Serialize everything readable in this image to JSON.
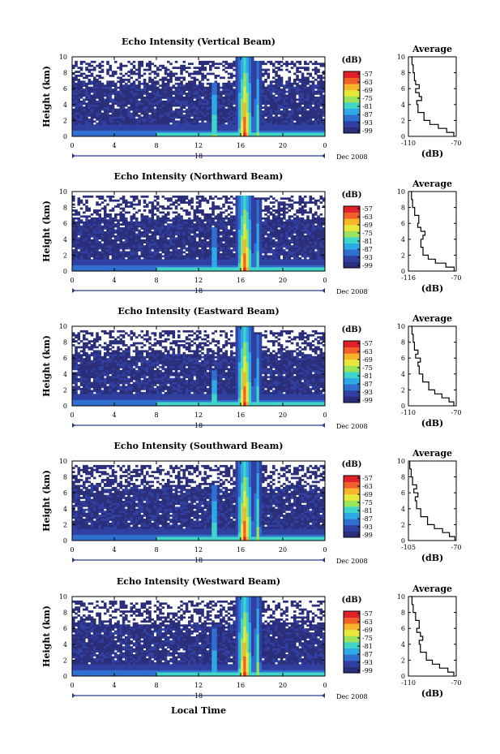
{
  "chart_data": [
    {
      "type": "heatmap",
      "title": "Echo Intensity (Vertical Beam)",
      "ylabel": "Height (km)",
      "xticks": [
        "0",
        "4",
        "8",
        "12",
        "16",
        "20",
        "0"
      ],
      "yticks": [
        "0",
        "2",
        "4",
        "6",
        "8",
        "10"
      ],
      "date_day": "18",
      "date_label": "Dec 2008",
      "xlim": [
        0,
        24
      ],
      "ylim": [
        0,
        10
      ],
      "colorbar": {
        "unit": "(dB)",
        "ticks": [
          "-57",
          "-63",
          "-69",
          "-75",
          "-81",
          "-87",
          "-93",
          "-99"
        ],
        "colors": [
          "#2b2e7a",
          "#3040a0",
          "#2f6fd0",
          "#2fa8e6",
          "#3fd6c9",
          "#9be35a",
          "#e8e83a",
          "#f7b52c",
          "#f2602a",
          "#e0202a"
        ]
      },
      "events": [
        {
          "label": "narrow echo near 13.5 LT",
          "x": 13.5,
          "top_km": 6.8,
          "strength": 0.75
        },
        {
          "label": "main echo",
          "x": 16.4,
          "top_km": 10,
          "strength": 1.0
        },
        {
          "label": "trailing echo",
          "x": 17.6,
          "top_km": 9.5,
          "strength": 0.55
        }
      ],
      "average": {
        "title": "Average",
        "xlabel": "(dB)",
        "xticks": [
          "-110",
          "-70"
        ],
        "xlim": [
          -110,
          -70
        ],
        "yticks": [
          "0",
          "2",
          "4",
          "6",
          "8",
          "10"
        ],
        "profile": [
          [
            0,
            -72
          ],
          [
            0.5,
            -78
          ],
          [
            1,
            -85
          ],
          [
            1.5,
            -92
          ],
          [
            2,
            -97
          ],
          [
            3,
            -102
          ],
          [
            4,
            -103
          ],
          [
            4.5,
            -99
          ],
          [
            5,
            -101
          ],
          [
            5.5,
            -104
          ],
          [
            6,
            -101
          ],
          [
            6.5,
            -104
          ],
          [
            7,
            -105
          ],
          [
            8,
            -106
          ],
          [
            9,
            -107
          ],
          [
            10,
            -108
          ]
        ]
      }
    },
    {
      "type": "heatmap",
      "title": "Echo Intensity (Northward Beam)",
      "ylabel": "Height (km)",
      "xticks": [
        "0",
        "4",
        "8",
        "12",
        "16",
        "20",
        "0"
      ],
      "yticks": [
        "0",
        "2",
        "4",
        "6",
        "8",
        "10"
      ],
      "date_day": "18",
      "date_label": "Dec 2008",
      "xlim": [
        0,
        24
      ],
      "ylim": [
        0,
        10
      ],
      "colorbar": {
        "unit": "(dB)",
        "ticks": [
          "-57",
          "-63",
          "-69",
          "-75",
          "-81",
          "-87",
          "-93",
          "-99"
        ],
        "colors": [
          "#2b2e7a",
          "#3040a0",
          "#2f6fd0",
          "#2fa8e6",
          "#3fd6c9",
          "#9be35a",
          "#e8e83a",
          "#f7b52c",
          "#f2602a",
          "#e0202a"
        ]
      },
      "events": [
        {
          "label": "narrow echo near 13.5 LT",
          "x": 13.5,
          "top_km": 5.5,
          "strength": 0.6
        },
        {
          "label": "main echo",
          "x": 16.4,
          "top_km": 9.5,
          "strength": 1.0
        },
        {
          "label": "trailing echo",
          "x": 17.6,
          "top_km": 9.0,
          "strength": 0.5
        }
      ],
      "average": {
        "title": "Average",
        "xlabel": "(dB)",
        "xticks": [
          "-116",
          "-70"
        ],
        "xlim": [
          -116,
          -70
        ],
        "yticks": [
          "0",
          "2",
          "4",
          "6",
          "8",
          "10"
        ],
        "profile": [
          [
            0,
            -72
          ],
          [
            0.5,
            -80
          ],
          [
            1,
            -90
          ],
          [
            1.5,
            -97
          ],
          [
            2,
            -102
          ],
          [
            3,
            -104
          ],
          [
            4,
            -102
          ],
          [
            4.5,
            -100
          ],
          [
            5,
            -104
          ],
          [
            5.5,
            -107
          ],
          [
            6,
            -106
          ],
          [
            7,
            -110
          ],
          [
            8,
            -112
          ],
          [
            9,
            -113
          ],
          [
            10,
            -114
          ]
        ]
      }
    },
    {
      "type": "heatmap",
      "title": "Echo Intensity (Eastward Beam)",
      "ylabel": "Height (km)",
      "xticks": [
        "0",
        "4",
        "8",
        "12",
        "16",
        "20",
        "0"
      ],
      "yticks": [
        "0",
        "2",
        "4",
        "6",
        "8",
        "10"
      ],
      "date_day": "18",
      "date_label": "Dec 2008",
      "xlim": [
        0,
        24
      ],
      "ylim": [
        0,
        10
      ],
      "colorbar": {
        "unit": "(dB)",
        "ticks": [
          "-57",
          "-63",
          "-69",
          "-75",
          "-81",
          "-87",
          "-93",
          "-99"
        ],
        "colors": [
          "#2b2e7a",
          "#3040a0",
          "#2f6fd0",
          "#2fa8e6",
          "#3fd6c9",
          "#9be35a",
          "#e8e83a",
          "#f7b52c",
          "#f2602a",
          "#e0202a"
        ]
      },
      "events": [
        {
          "label": "narrow echo near 13.5 LT",
          "x": 13.5,
          "top_km": 4.5,
          "strength": 0.7
        },
        {
          "label": "main echo",
          "x": 16.4,
          "top_km": 10,
          "strength": 1.0
        },
        {
          "label": "trailing echo",
          "x": 17.6,
          "top_km": 9.0,
          "strength": 0.5
        }
      ],
      "average": {
        "title": "Average",
        "xlabel": "(dB)",
        "xticks": [
          "-110",
          "-70"
        ],
        "xlim": [
          -110,
          -70
        ],
        "yticks": [
          "0",
          "2",
          "4",
          "6",
          "8",
          "10"
        ],
        "profile": [
          [
            0,
            -72
          ],
          [
            0.5,
            -76
          ],
          [
            1,
            -82
          ],
          [
            1.5,
            -88
          ],
          [
            2,
            -93
          ],
          [
            3,
            -98
          ],
          [
            4,
            -101
          ],
          [
            5,
            -102
          ],
          [
            5.5,
            -100
          ],
          [
            6,
            -104
          ],
          [
            6.5,
            -102
          ],
          [
            7,
            -105
          ],
          [
            8,
            -106
          ],
          [
            9,
            -107
          ],
          [
            10,
            -108
          ]
        ]
      }
    },
    {
      "type": "heatmap",
      "title": "Echo Intensity (Southward Beam)",
      "ylabel": "Height (km)",
      "xticks": [
        "0",
        "4",
        "8",
        "12",
        "16",
        "20",
        "0"
      ],
      "yticks": [
        "0",
        "2",
        "4",
        "6",
        "8",
        "10"
      ],
      "date_day": "18",
      "date_label": "Dec 2008",
      "xlim": [
        0,
        24
      ],
      "ylim": [
        0,
        10
      ],
      "colorbar": {
        "unit": "(dB)",
        "ticks": [
          "-57",
          "-63",
          "-69",
          "-75",
          "-81",
          "-87",
          "-93",
          "-99"
        ],
        "colors": [
          "#2b2e7a",
          "#3040a0",
          "#2f6fd0",
          "#2fa8e6",
          "#3fd6c9",
          "#9be35a",
          "#e8e83a",
          "#f7b52c",
          "#f2602a",
          "#e0202a"
        ]
      },
      "events": [
        {
          "label": "narrow echo near 13.5 LT",
          "x": 13.5,
          "top_km": 7.0,
          "strength": 0.7
        },
        {
          "label": "main echo",
          "x": 16.4,
          "top_km": 10,
          "strength": 1.0
        },
        {
          "label": "trailing echo",
          "x": 17.6,
          "top_km": 10,
          "strength": 0.6
        }
      ],
      "average": {
        "title": "Average",
        "xlabel": "(dB)",
        "xticks": [
          "-105",
          "-70"
        ],
        "xlim": [
          -105,
          -70
        ],
        "yticks": [
          "0",
          "2",
          "4",
          "6",
          "8",
          "10"
        ],
        "profile": [
          [
            0,
            -71
          ],
          [
            0.5,
            -75
          ],
          [
            1,
            -80
          ],
          [
            1.5,
            -86
          ],
          [
            2,
            -91
          ],
          [
            3,
            -96
          ],
          [
            4,
            -99
          ],
          [
            5,
            -100
          ],
          [
            5.5,
            -98
          ],
          [
            6,
            -101
          ],
          [
            6.5,
            -99
          ],
          [
            7,
            -102
          ],
          [
            8,
            -103
          ],
          [
            9,
            -104
          ],
          [
            10,
            -104
          ]
        ]
      }
    },
    {
      "type": "heatmap",
      "title": "Echo Intensity (Westward Beam)",
      "ylabel": "Height (km)",
      "xticks": [
        "0",
        "4",
        "8",
        "12",
        "16",
        "20",
        "0"
      ],
      "yticks": [
        "0",
        "2",
        "4",
        "6",
        "8",
        "10"
      ],
      "date_day": "18",
      "date_label": "Dec 2008",
      "xlabel": "Local Time",
      "xlim": [
        0,
        24
      ],
      "ylim": [
        0,
        10
      ],
      "colorbar": {
        "unit": "(dB)",
        "ticks": [
          "-57",
          "-63",
          "-69",
          "-75",
          "-81",
          "-87",
          "-93",
          "-99"
        ],
        "colors": [
          "#2b2e7a",
          "#3040a0",
          "#2f6fd0",
          "#2fa8e6",
          "#3fd6c9",
          "#9be35a",
          "#e8e83a",
          "#f7b52c",
          "#f2602a",
          "#e0202a"
        ]
      },
      "events": [
        {
          "label": "narrow echo near 13.5 LT",
          "x": 13.5,
          "top_km": 6.0,
          "strength": 0.6
        },
        {
          "label": "main echo",
          "x": 16.4,
          "top_km": 10,
          "strength": 1.0
        },
        {
          "label": "trailing echo",
          "x": 17.6,
          "top_km": 10,
          "strength": 0.6
        }
      ],
      "average": {
        "title": "Average",
        "xlabel": "(dB)",
        "xticks": [
          "-110",
          "-70"
        ],
        "xlim": [
          -110,
          -70
        ],
        "yticks": [
          "0",
          "2",
          "4",
          "6",
          "8",
          "10"
        ],
        "profile": [
          [
            0,
            -72
          ],
          [
            0.5,
            -77
          ],
          [
            1,
            -84
          ],
          [
            1.5,
            -90
          ],
          [
            2,
            -95
          ],
          [
            3,
            -100
          ],
          [
            4,
            -101
          ],
          [
            4.5,
            -98
          ],
          [
            5,
            -100
          ],
          [
            5.5,
            -103
          ],
          [
            6,
            -101
          ],
          [
            7,
            -104
          ],
          [
            8,
            -106
          ],
          [
            9,
            -107
          ],
          [
            10,
            -108
          ]
        ]
      }
    }
  ]
}
